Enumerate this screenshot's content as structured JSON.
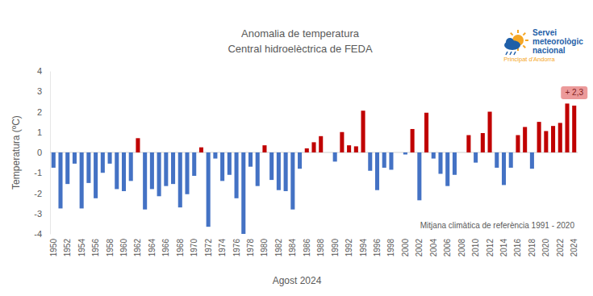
{
  "chart_data": {
    "type": "bar",
    "title": "Anomalia de temperatura",
    "subtitle": "Central hidroelèctrica de FEDA",
    "y_label": "Temperatura (ºC)",
    "x_label": "Agost 2024",
    "categories": [
      "1950",
      null,
      "1952",
      null,
      "1954",
      null,
      "1956",
      null,
      "1958",
      null,
      "1960",
      null,
      "1962",
      null,
      "1964",
      null,
      "1966",
      null,
      "1968",
      null,
      "1970",
      null,
      "1972",
      null,
      "1974",
      null,
      "1976",
      null,
      "1978",
      null,
      "1980",
      null,
      "1982",
      null,
      "1984",
      null,
      "1986",
      null,
      "1988",
      null,
      "1990",
      null,
      "1992",
      null,
      "1994",
      null,
      "1996",
      null,
      "1998",
      null,
      "2000",
      null,
      "2002",
      null,
      "2004",
      null,
      "2006",
      null,
      "2008",
      null,
      "2010",
      null,
      "2012",
      null,
      "2014",
      null,
      "2016",
      null,
      "2018",
      null,
      "2020",
      null,
      "2022",
      null,
      "2024"
    ],
    "values": [
      -0.75,
      -2.75,
      -1.55,
      -0.55,
      -2.75,
      -1.5,
      -2.25,
      -1.0,
      -0.55,
      -1.8,
      -1.9,
      -1.4,
      0.7,
      -2.8,
      -1.8,
      -2.15,
      -1.65,
      -1.55,
      -2.7,
      -2.05,
      -1.15,
      0.25,
      -3.65,
      -0.3,
      -1.4,
      -1.1,
      -2.25,
      -4.0,
      -0.7,
      -1.65,
      0.35,
      -1.35,
      -1.85,
      -1.9,
      -2.8,
      -0.8,
      0.2,
      0.5,
      0.8,
      0,
      -0.45,
      1.0,
      0.35,
      0.3,
      2.05,
      -0.9,
      -1.85,
      -0.75,
      -0.85,
      0,
      -0.1,
      1.15,
      -2.35,
      1.95,
      -0.3,
      -1.05,
      -1.65,
      -1.1,
      0,
      0.85,
      -0.5,
      0.95,
      2.0,
      -0.75,
      -1.6,
      -0.75,
      0.85,
      1.25,
      -0.8,
      1.5,
      1.05,
      1.3,
      1.45,
      2.4,
      2.3
    ],
    "colors": [
      "#4472c4",
      "#4472c4",
      "#4472c4",
      "#4472c4",
      "#4472c4",
      "#4472c4",
      "#4472c4",
      "#4472c4",
      "#4472c4",
      "#4472c4",
      "#4472c4",
      "#4472c4",
      "#c00000",
      "#4472c4",
      "#4472c4",
      "#4472c4",
      "#4472c4",
      "#4472c4",
      "#4472c4",
      "#4472c4",
      "#4472c4",
      "#c00000",
      "#4472c4",
      "#4472c4",
      "#4472c4",
      "#4472c4",
      "#4472c4",
      "#4472c4",
      "#4472c4",
      "#4472c4",
      "#c00000",
      "#4472c4",
      "#4472c4",
      "#4472c4",
      "#4472c4",
      "#4472c4",
      "#c00000",
      "#c00000",
      "#c00000",
      "#4472c4",
      "#4472c4",
      "#c00000",
      "#c00000",
      "#c00000",
      "#c00000",
      "#4472c4",
      "#4472c4",
      "#4472c4",
      "#4472c4",
      "#4472c4",
      "#4472c4",
      "#c00000",
      "#4472c4",
      "#c00000",
      "#4472c4",
      "#4472c4",
      "#4472c4",
      "#4472c4",
      "#4472c4",
      "#c00000",
      "#4472c4",
      "#c00000",
      "#c00000",
      "#4472c4",
      "#4472c4",
      "#4472c4",
      "#c00000",
      "#c00000",
      "#4472c4",
      "#c00000",
      "#c00000",
      "#c00000",
      "#c00000",
      "#c00000",
      "#c00000"
    ],
    "ylim": [
      -4,
      4
    ],
    "yticks": [
      -4,
      -3,
      -2,
      -1,
      0,
      1,
      2,
      3,
      4
    ],
    "grid": false,
    "annotations": [
      {
        "text": "+ 2,3",
        "category": "2024",
        "value": 2.3
      },
      {
        "text": "Mitjana climàtica de referència 1991 - 2020"
      }
    ]
  },
  "logo": {
    "lines": [
      "Servei",
      "meteorològic",
      "nacional"
    ],
    "subtitle": "Principat d'Andorra"
  }
}
